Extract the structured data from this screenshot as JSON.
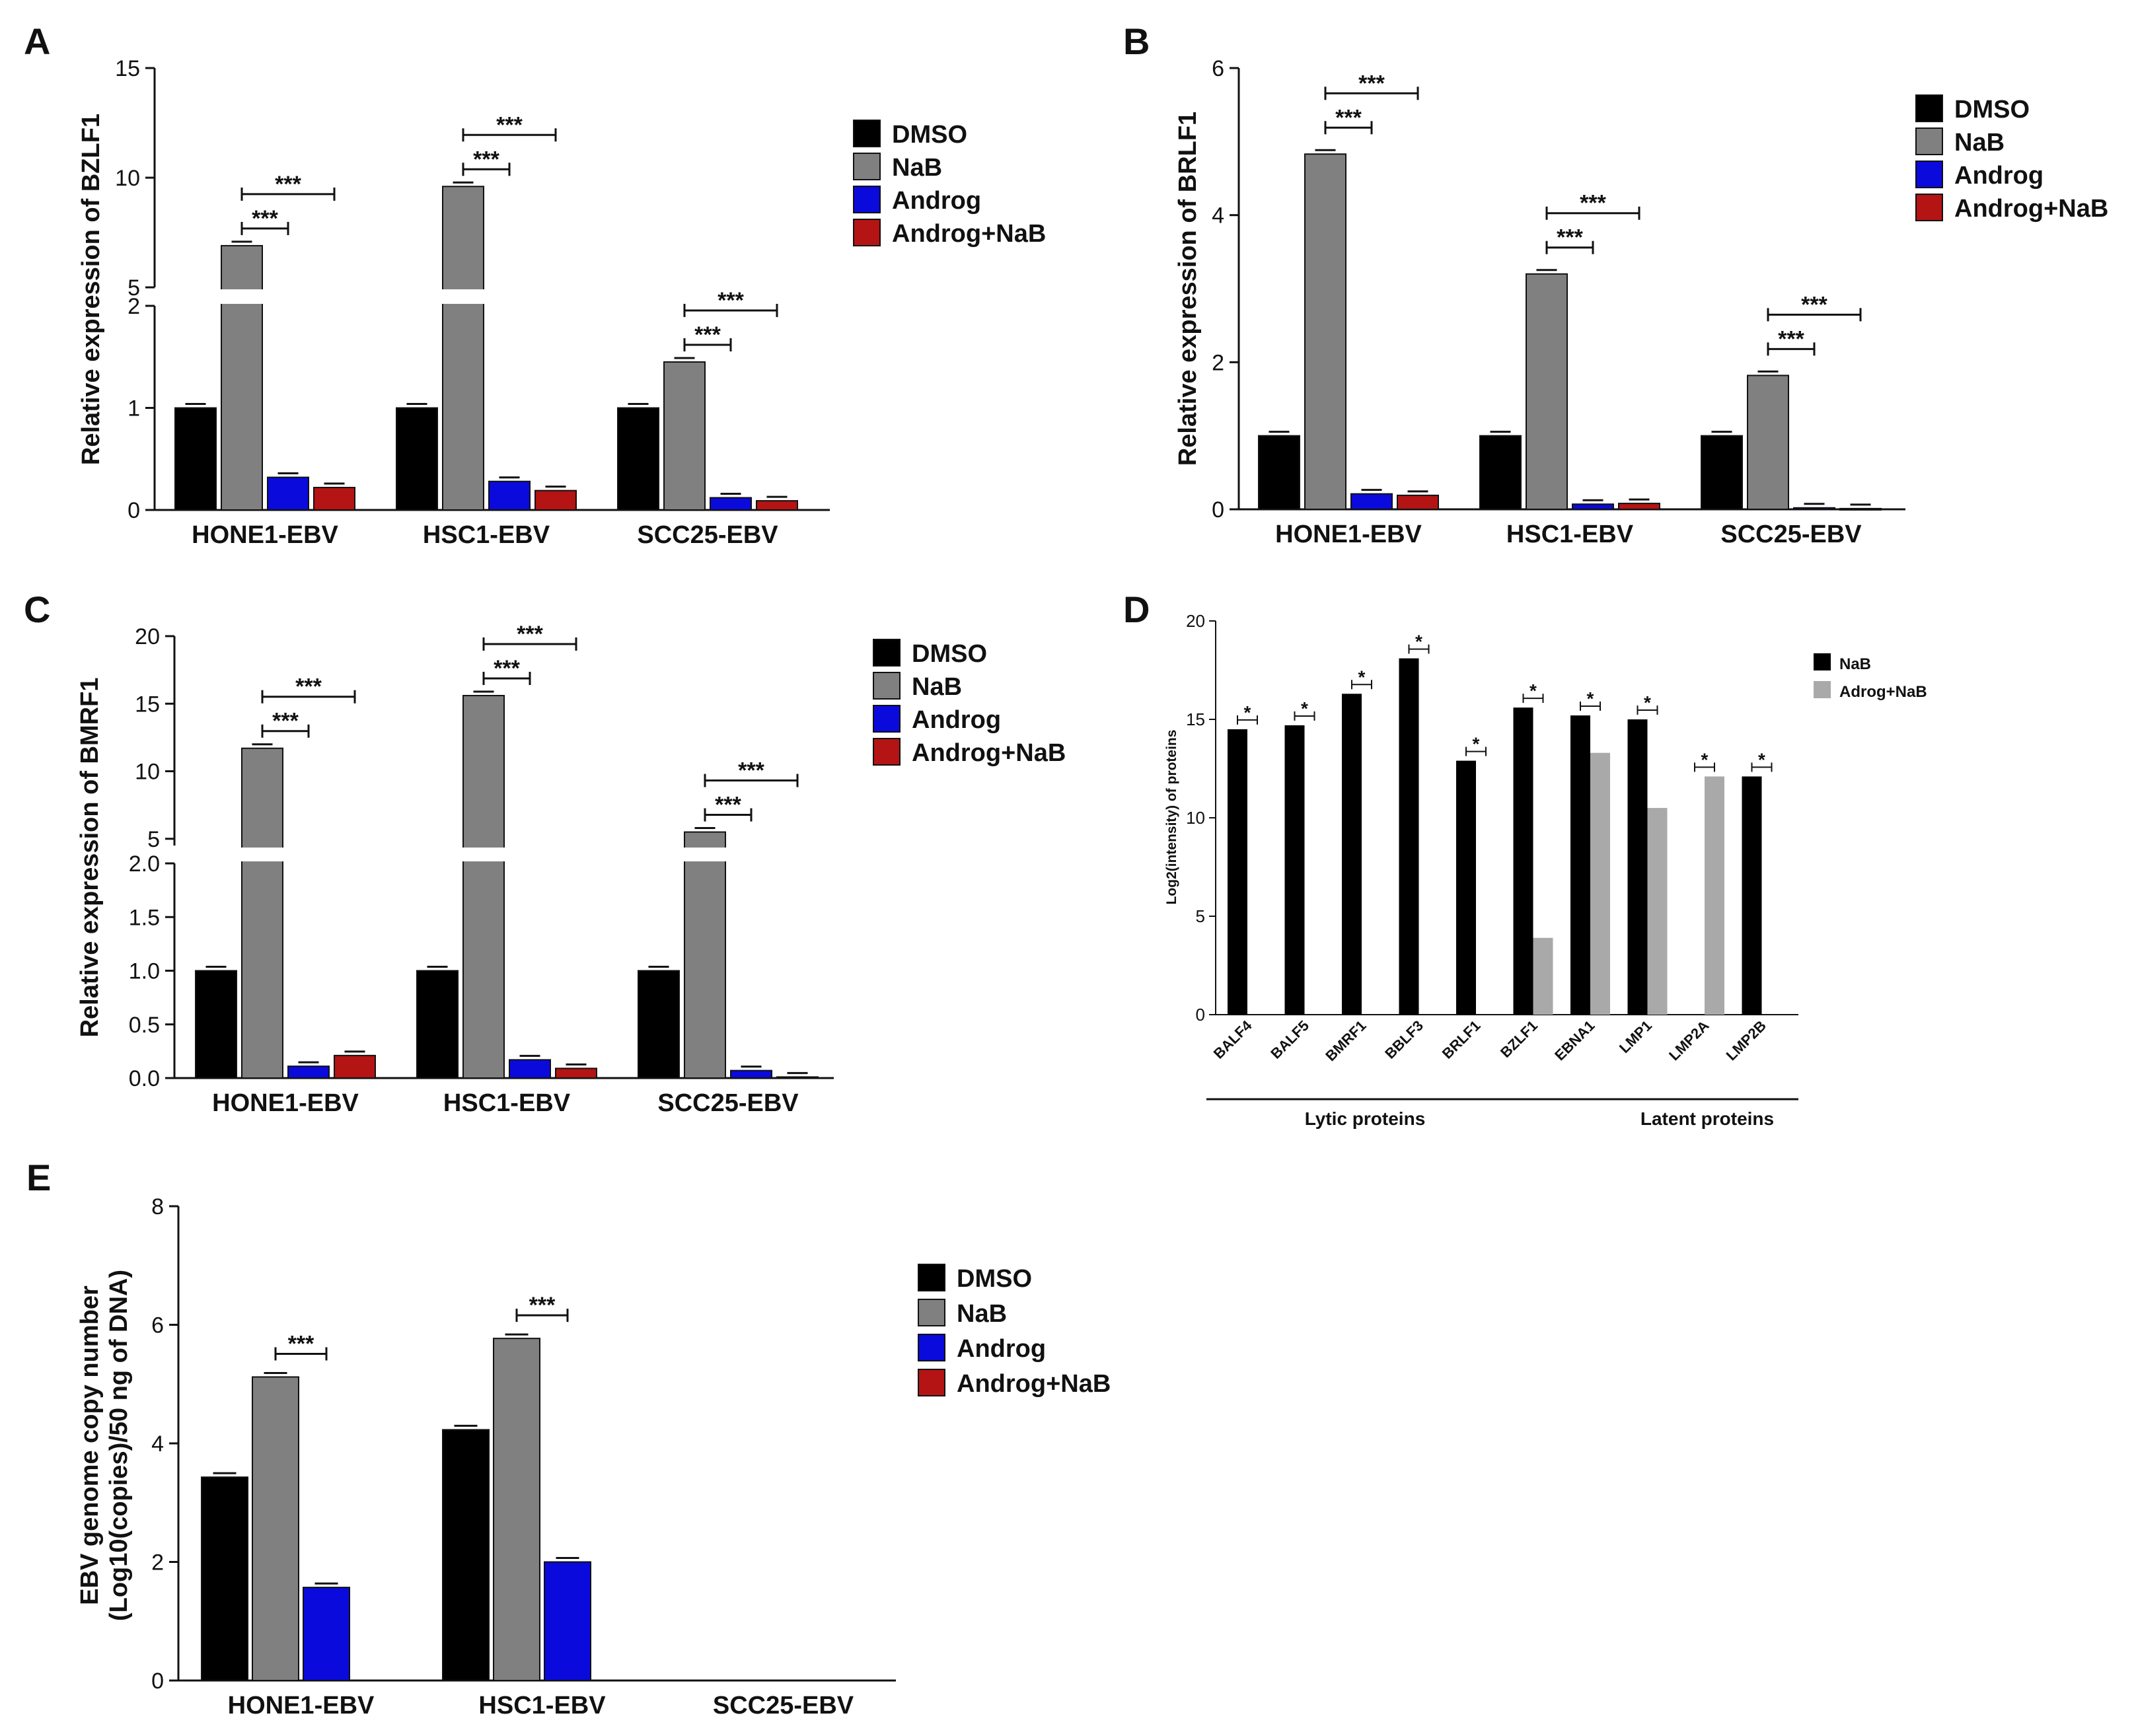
{
  "legend_labels": [
    "DMSO",
    "NaB",
    "Androg",
    "Androg+NaB"
  ],
  "colors": {
    "DMSO": "#000000",
    "NaB": "#808080",
    "Androg": "#0a0adc",
    "Androg+NaB": "#b41414"
  },
  "chart_data": [
    {
      "panel": "A",
      "type": "bar",
      "categories": [
        "HONE1-EBV",
        "HSC1-EBV",
        "SCC25-EBV"
      ],
      "series": [
        {
          "name": "DMSO",
          "values": [
            1.0,
            1.0,
            1.0
          ]
        },
        {
          "name": "NaB",
          "values": [
            6.9,
            9.6,
            1.45
          ]
        },
        {
          "name": "Androg",
          "values": [
            0.32,
            0.28,
            0.12
          ]
        },
        {
          "name": "Androg+NaB",
          "values": [
            0.22,
            0.19,
            0.09
          ]
        }
      ],
      "ylabel": "Relative expression of BZLF1",
      "y_break": {
        "lower": [
          0,
          2
        ],
        "upper": [
          5,
          15
        ]
      },
      "yticks_lower": [
        "0",
        "1",
        "2"
      ],
      "yticks_upper": [
        "5",
        "10",
        "15"
      ],
      "significance": [
        {
          "category": "HONE1-EBV",
          "pairs": [
            [
              "NaB",
              "Androg"
            ],
            [
              "NaB",
              "Androg+NaB"
            ]
          ],
          "label": "***"
        },
        {
          "category": "HSC1-EBV",
          "pairs": [
            [
              "NaB",
              "Androg"
            ],
            [
              "NaB",
              "Androg+NaB"
            ]
          ],
          "label": "***"
        },
        {
          "category": "SCC25-EBV",
          "pairs": [
            [
              "NaB",
              "Androg"
            ],
            [
              "NaB",
              "Androg+NaB"
            ]
          ],
          "label": "***"
        }
      ]
    },
    {
      "panel": "B",
      "type": "bar",
      "categories": [
        "HONE1-EBV",
        "HSC1-EBV",
        "SCC25-EBV"
      ],
      "series": [
        {
          "name": "DMSO",
          "values": [
            1.0,
            1.0,
            1.0
          ]
        },
        {
          "name": "NaB",
          "values": [
            4.83,
            3.2,
            1.82
          ]
        },
        {
          "name": "Androg",
          "values": [
            0.21,
            0.07,
            0.02
          ]
        },
        {
          "name": "Androg+NaB",
          "values": [
            0.19,
            0.08,
            0.01
          ]
        }
      ],
      "ylabel": "Relative expression of BRLF1",
      "ylim": [
        0,
        6
      ],
      "yticks": [
        "0",
        "2",
        "4",
        "6"
      ],
      "significance": [
        {
          "category": "HONE1-EBV",
          "pairs": [
            [
              "NaB",
              "Androg"
            ],
            [
              "NaB",
              "Androg+NaB"
            ]
          ],
          "label": "***"
        },
        {
          "category": "HSC1-EBV",
          "pairs": [
            [
              "NaB",
              "Androg"
            ],
            [
              "NaB",
              "Androg+NaB"
            ]
          ],
          "label": "***"
        },
        {
          "category": "SCC25-EBV",
          "pairs": [
            [
              "NaB",
              "Androg"
            ],
            [
              "NaB",
              "Androg+NaB"
            ]
          ],
          "label": "***"
        }
      ]
    },
    {
      "panel": "C",
      "type": "bar",
      "categories": [
        "HONE1-EBV",
        "HSC1-EBV",
        "SCC25-EBV"
      ],
      "series": [
        {
          "name": "DMSO",
          "values": [
            1.0,
            1.0,
            1.0
          ]
        },
        {
          "name": "NaB",
          "values": [
            11.7,
            15.6,
            5.5
          ]
        },
        {
          "name": "Androg",
          "values": [
            0.11,
            0.17,
            0.07
          ]
        },
        {
          "name": "Androg+NaB",
          "values": [
            0.21,
            0.09,
            0.01
          ]
        }
      ],
      "ylabel": "Relative expression of BMRF1",
      "y_break": {
        "lower": [
          0,
          2
        ],
        "upper": [
          4.5,
          20
        ]
      },
      "yticks_lower": [
        "0.0",
        "0.5",
        "1.0",
        "1.5",
        "2.0"
      ],
      "yticks_upper": [
        "5",
        "10",
        "15",
        "20"
      ],
      "significance": [
        {
          "category": "HONE1-EBV",
          "pairs": [
            [
              "NaB",
              "Androg"
            ],
            [
              "NaB",
              "Androg+NaB"
            ]
          ],
          "label": "***"
        },
        {
          "category": "HSC1-EBV",
          "pairs": [
            [
              "NaB",
              "Androg"
            ],
            [
              "NaB",
              "Androg+NaB"
            ]
          ],
          "label": "***"
        },
        {
          "category": "SCC25-EBV",
          "pairs": [
            [
              "NaB",
              "Androg"
            ],
            [
              "NaB",
              "Androg+NaB"
            ]
          ],
          "label": "***"
        }
      ]
    },
    {
      "panel": "D",
      "type": "bar",
      "categories": [
        "BALF4",
        "BALF5",
        "BMRF1",
        "BBLF3",
        "BRLF1",
        "BZLF1",
        "EBNA1",
        "LMP1",
        "LMP2A",
        "LMP2B"
      ],
      "series": [
        {
          "name": "NaB",
          "values": [
            14.5,
            14.7,
            16.3,
            18.1,
            12.9,
            15.6,
            15.2,
            15.0,
            0,
            12.1
          ]
        },
        {
          "name": "Adrog+NaB",
          "values": [
            0,
            0,
            0,
            0,
            0,
            3.9,
            13.3,
            10.5,
            12.1,
            0
          ]
        }
      ],
      "series_colors": [
        "#000000",
        "#a9a9a9"
      ],
      "ylabel": "Log2(intensity) of proteins",
      "ylim": [
        0,
        20
      ],
      "yticks": [
        "0",
        "5",
        "10",
        "15",
        "20"
      ],
      "groups": [
        {
          "label": "Lytic proteins",
          "from": "BALF4",
          "to": "BZLF1"
        },
        {
          "label": "Latent proteins",
          "from": "EBNA1",
          "to": "LMP2B"
        }
      ],
      "significance_label": "*"
    },
    {
      "panel": "E",
      "type": "bar",
      "categories": [
        "HONE1-EBV",
        "HSC1-EBV",
        "SCC25-EBV"
      ],
      "series": [
        {
          "name": "DMSO",
          "values": [
            3.43,
            4.23,
            0
          ]
        },
        {
          "name": "NaB",
          "values": [
            5.12,
            5.77,
            0
          ]
        },
        {
          "name": "Androg",
          "values": [
            1.57,
            2.0,
            0
          ]
        },
        {
          "name": "Androg+NaB",
          "values": [
            0,
            0,
            0
          ]
        }
      ],
      "ylabel_lines": [
        "EBV genome copy number",
        "(Log10(copies)/50 ng of DNA)"
      ],
      "ylim": [
        0,
        8
      ],
      "yticks": [
        "0",
        "2",
        "4",
        "6",
        "8"
      ],
      "significance": [
        {
          "category": "HONE1-EBV",
          "pairs": [
            [
              "NaB",
              "Androg"
            ]
          ],
          "label": "***"
        },
        {
          "category": "HSC1-EBV",
          "pairs": [
            [
              "NaB",
              "Androg"
            ]
          ],
          "label": "***"
        }
      ]
    }
  ]
}
